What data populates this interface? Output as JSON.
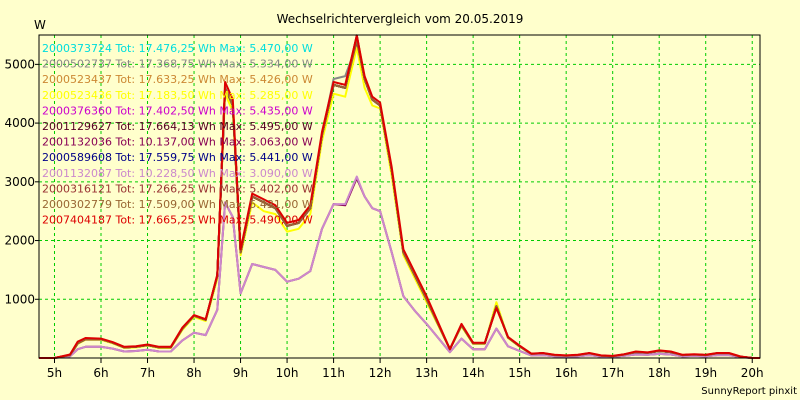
{
  "chart_data": {
    "type": "line",
    "title": "Wechselrichtervergleich vom 20.05.2019",
    "ylabel": "W",
    "footer": "SunnyReport pinxit",
    "xlim": [
      4.667,
      20.167
    ],
    "ylim": [
      0,
      5500
    ],
    "x_ticks": [
      {
        "v": 5,
        "label": "5h"
      },
      {
        "v": 6,
        "label": "6h"
      },
      {
        "v": 7,
        "label": "7h"
      },
      {
        "v": 8,
        "label": "8h"
      },
      {
        "v": 9,
        "label": "9h"
      },
      {
        "v": 10,
        "label": "10h"
      },
      {
        "v": 11,
        "label": "11h"
      },
      {
        "v": 12,
        "label": "12h"
      },
      {
        "v": 13,
        "label": "13h"
      },
      {
        "v": 14,
        "label": "14h"
      },
      {
        "v": 15,
        "label": "15h"
      },
      {
        "v": 16,
        "label": "16h"
      },
      {
        "v": 17,
        "label": "17h"
      },
      {
        "v": 18,
        "label": "18h"
      },
      {
        "v": 19,
        "label": "19h"
      },
      {
        "v": 20,
        "label": "20h"
      }
    ],
    "y_ticks": [
      {
        "v": 1000,
        "label": "1000"
      },
      {
        "v": 2000,
        "label": "2000"
      },
      {
        "v": 3000,
        "label": "3000"
      },
      {
        "v": 4000,
        "label": "4000"
      },
      {
        "v": 5000,
        "label": "5000"
      }
    ],
    "grid": true,
    "x": [
      4.667,
      5.0,
      5.333,
      5.5,
      5.667,
      6.0,
      6.25,
      6.5,
      6.75,
      7.0,
      7.25,
      7.5,
      7.75,
      8.0,
      8.25,
      8.5,
      8.667,
      8.833,
      9.0,
      9.25,
      9.5,
      9.75,
      10.0,
      10.25,
      10.5,
      10.75,
      11.0,
      11.25,
      11.5,
      11.667,
      11.833,
      12.0,
      12.25,
      12.5,
      12.75,
      13.0,
      13.5,
      13.75,
      14.0,
      14.25,
      14.5,
      14.75,
      15.0,
      15.25,
      15.5,
      15.75,
      16.0,
      16.25,
      16.5,
      16.75,
      17.0,
      17.25,
      17.5,
      17.75,
      18.0,
      18.25,
      18.5,
      18.75,
      19.0,
      19.25,
      19.5,
      19.75,
      20.0,
      20.167
    ],
    "series": [
      {
        "name": "2000373724 Tot: 17.476,25 Wh Max: 5.470,00 W",
        "color": "#00dddd",
        "values": [
          0,
          0,
          50,
          250,
          320,
          320,
          260,
          180,
          190,
          220,
          180,
          180,
          500,
          720,
          650,
          1400,
          4600,
          4300,
          1800,
          2750,
          2650,
          2550,
          2250,
          2300,
          2550,
          3800,
          4650,
          4600,
          5470,
          4750,
          4400,
          4300,
          3200,
          1800,
          1400,
          1000,
          150,
          560,
          250,
          250,
          880,
          350,
          200,
          70,
          80,
          50,
          40,
          50,
          80,
          40,
          30,
          60,
          100,
          90,
          120,
          100,
          50,
          60,
          50,
          80,
          80,
          20,
          0,
          0
        ]
      },
      {
        "name": "2000502737 Tot: 17.368,75 Wh Max: 5.334,00 W",
        "color": "#888888",
        "values": [
          0,
          0,
          50,
          250,
          320,
          320,
          260,
          180,
          190,
          220,
          180,
          180,
          500,
          720,
          650,
          1400,
          4600,
          4300,
          1800,
          2750,
          2650,
          2550,
          2250,
          2300,
          2550,
          3800,
          4750,
          4800,
          5334,
          4750,
          4400,
          4300,
          3200,
          1800,
          1400,
          1000,
          150,
          560,
          250,
          250,
          880,
          350,
          200,
          70,
          80,
          50,
          40,
          50,
          80,
          40,
          30,
          60,
          100,
          90,
          120,
          100,
          50,
          60,
          50,
          80,
          80,
          20,
          0,
          0
        ]
      },
      {
        "name": "2000523437 Tot: 17.633,25 Wh Max: 5.426,00 W",
        "color": "#cc8833",
        "values": [
          0,
          0,
          50,
          250,
          320,
          320,
          260,
          180,
          190,
          220,
          180,
          180,
          500,
          720,
          650,
          1400,
          4600,
          4300,
          1800,
          2750,
          2650,
          2550,
          2250,
          2300,
          2550,
          3800,
          4650,
          4600,
          5426,
          4750,
          4400,
          4300,
          3200,
          1800,
          1400,
          1000,
          150,
          560,
          250,
          250,
          880,
          350,
          200,
          70,
          80,
          50,
          40,
          50,
          80,
          40,
          30,
          60,
          100,
          90,
          120,
          100,
          50,
          60,
          50,
          80,
          80,
          20,
          0,
          0
        ]
      },
      {
        "name": "2000523436 Tot: 17.183,50 Wh Max: 5.285,00 W",
        "color": "#ffff00",
        "values": [
          0,
          0,
          40,
          240,
          310,
          310,
          250,
          170,
          180,
          210,
          170,
          170,
          480,
          700,
          630,
          1350,
          4500,
          4200,
          1750,
          2650,
          2500,
          2450,
          2150,
          2200,
          2450,
          3700,
          4500,
          4450,
          5285,
          4600,
          4300,
          4250,
          3100,
          1750,
          1350,
          950,
          150,
          540,
          240,
          240,
          950,
          340,
          190,
          70,
          80,
          50,
          40,
          50,
          80,
          40,
          30,
          60,
          100,
          90,
          120,
          100,
          50,
          60,
          50,
          80,
          80,
          20,
          0,
          0
        ]
      },
      {
        "name": "2000376360 Tot: 17.402,50 Wh Max: 5.435,00 W",
        "color": "#cc00cc",
        "values": [
          0,
          0,
          50,
          250,
          320,
          320,
          260,
          180,
          190,
          220,
          180,
          180,
          500,
          720,
          650,
          1400,
          4600,
          4300,
          1800,
          2750,
          2650,
          2550,
          2250,
          2300,
          2550,
          3800,
          4650,
          4600,
          5435,
          4750,
          4400,
          4300,
          3200,
          1800,
          1400,
          1000,
          150,
          560,
          250,
          250,
          880,
          350,
          200,
          70,
          80,
          50,
          40,
          50,
          80,
          40,
          30,
          60,
          100,
          90,
          120,
          100,
          50,
          60,
          50,
          80,
          80,
          20,
          0,
          0
        ]
      },
      {
        "name": "2001129627 Tot: 17.664,13 Wh Max: 5.495,00 W",
        "color": "#550022",
        "values": [
          0,
          0,
          50,
          250,
          320,
          320,
          260,
          180,
          190,
          220,
          180,
          180,
          500,
          720,
          650,
          1400,
          4600,
          4300,
          1800,
          2750,
          2650,
          2550,
          2250,
          2300,
          2550,
          3800,
          4650,
          4600,
          5495,
          4750,
          4400,
          4300,
          3200,
          1800,
          1400,
          1000,
          150,
          560,
          250,
          250,
          880,
          350,
          200,
          70,
          80,
          50,
          40,
          50,
          80,
          40,
          30,
          60,
          100,
          90,
          120,
          100,
          50,
          60,
          50,
          80,
          80,
          20,
          0,
          0
        ]
      },
      {
        "name": "2001132036 Tot: 10.137,00 Wh Max: 3.063,00 W",
        "color": "#880055",
        "values": [
          0,
          0,
          30,
          150,
          190,
          190,
          160,
          110,
          120,
          140,
          110,
          110,
          300,
          430,
          390,
          820,
          2650,
          2400,
          1100,
          1600,
          1550,
          1500,
          1300,
          1350,
          1480,
          2200,
          2620,
          2600,
          3063,
          2750,
          2550,
          2500,
          1800,
          1050,
          800,
          580,
          100,
          330,
          150,
          150,
          500,
          200,
          120,
          45,
          50,
          30,
          25,
          30,
          50,
          25,
          20,
          40,
          60,
          55,
          70,
          60,
          30,
          35,
          30,
          50,
          50,
          15,
          0,
          0
        ]
      },
      {
        "name": "2000589608 Tot: 17.559,75 Wh Max: 5.441,00 W",
        "color": "#000088",
        "values": [
          0,
          0,
          50,
          250,
          320,
          320,
          260,
          180,
          190,
          220,
          180,
          180,
          500,
          720,
          650,
          1400,
          4600,
          4300,
          1800,
          2750,
          2650,
          2550,
          2250,
          2300,
          2550,
          3800,
          4650,
          4600,
          5441,
          4750,
          4400,
          4300,
          3200,
          1800,
          1400,
          1000,
          150,
          560,
          250,
          250,
          880,
          350,
          200,
          70,
          80,
          50,
          40,
          50,
          80,
          40,
          30,
          60,
          100,
          90,
          120,
          100,
          50,
          60,
          50,
          80,
          80,
          20,
          0,
          0
        ]
      },
      {
        "name": "2001132087 Tot: 10.228,50 Wh Max: 3.090,00 W",
        "color": "#cc88cc",
        "values": [
          0,
          0,
          30,
          150,
          190,
          190,
          160,
          110,
          120,
          140,
          110,
          110,
          300,
          430,
          390,
          820,
          2650,
          2400,
          1100,
          1600,
          1550,
          1500,
          1300,
          1350,
          1480,
          2200,
          2620,
          2620,
          3090,
          2750,
          2550,
          2500,
          1800,
          1050,
          800,
          580,
          100,
          330,
          150,
          150,
          500,
          200,
          120,
          45,
          50,
          30,
          25,
          30,
          50,
          25,
          20,
          40,
          60,
          55,
          70,
          60,
          30,
          35,
          30,
          50,
          50,
          15,
          0,
          0
        ]
      },
      {
        "name": "2000316121 Tot: 17.266,25 Wh Max: 5.402,00 W",
        "color": "#993333",
        "values": [
          0,
          0,
          50,
          250,
          320,
          320,
          260,
          180,
          190,
          220,
          180,
          180,
          500,
          720,
          650,
          1400,
          4600,
          4300,
          1800,
          2750,
          2650,
          2550,
          2250,
          2300,
          2550,
          3800,
          4650,
          4600,
          5402,
          4750,
          4400,
          4300,
          3200,
          1800,
          1400,
          1000,
          150,
          560,
          250,
          250,
          880,
          350,
          200,
          70,
          80,
          50,
          40,
          50,
          80,
          40,
          30,
          60,
          100,
          90,
          120,
          100,
          50,
          60,
          50,
          80,
          80,
          20,
          0,
          0
        ]
      },
      {
        "name": "2000302779 Tot: 17.509,00 Wh Max: 5.431,00 W",
        "color": "#996633",
        "values": [
          0,
          0,
          50,
          250,
          320,
          320,
          260,
          180,
          190,
          220,
          180,
          180,
          500,
          720,
          650,
          1400,
          4600,
          4300,
          1800,
          2750,
          2650,
          2550,
          2250,
          2300,
          2550,
          3800,
          4650,
          4600,
          5431,
          4750,
          4400,
          4300,
          3200,
          1800,
          1400,
          1000,
          150,
          560,
          250,
          250,
          880,
          350,
          200,
          70,
          80,
          50,
          40,
          50,
          80,
          40,
          30,
          60,
          100,
          90,
          120,
          100,
          50,
          60,
          50,
          80,
          80,
          20,
          0,
          0
        ]
      },
      {
        "name": "2007404187 Tot: 17.665,25 Wh Max: 5.490,00 W",
        "color": "#dd0000",
        "values": [
          0,
          0,
          60,
          280,
          340,
          330,
          270,
          190,
          200,
          230,
          190,
          190,
          520,
          730,
          660,
          1420,
          4700,
          4400,
          1850,
          2800,
          2700,
          2600,
          2300,
          2350,
          2600,
          3850,
          4700,
          4650,
          5490,
          4800,
          4450,
          4350,
          3250,
          1850,
          1450,
          1050,
          150,
          580,
          260,
          260,
          850,
          360,
          210,
          75,
          85,
          55,
          45,
          55,
          85,
          45,
          35,
          65,
          110,
          95,
          130,
          110,
          55,
          65,
          55,
          85,
          85,
          25,
          0,
          0
        ]
      }
    ]
  }
}
